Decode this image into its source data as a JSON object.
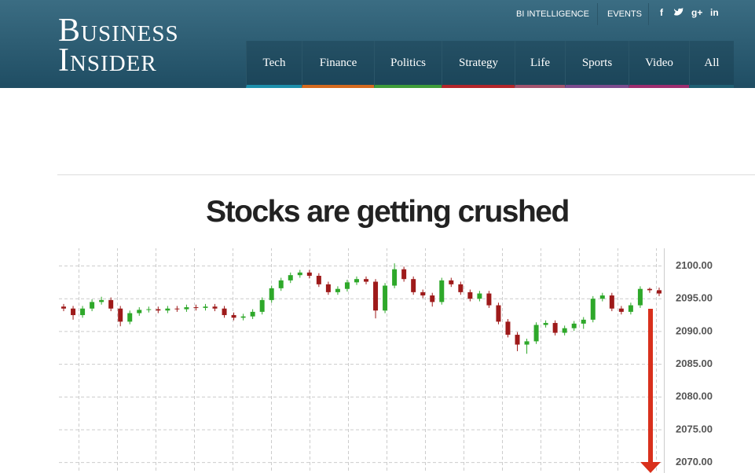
{
  "header": {
    "logo": [
      "Business",
      "Insider"
    ],
    "top_links": [
      "BI INTELLIGENCE",
      "EVENTS"
    ],
    "social": [
      "f",
      "g+",
      "in"
    ],
    "nav": [
      {
        "label": "Tech",
        "color": "#1d8fab"
      },
      {
        "label": "Finance",
        "color": "#d46a1e"
      },
      {
        "label": "Politics",
        "color": "#3f9c3a"
      },
      {
        "label": "Strategy",
        "color": "#b3262a"
      },
      {
        "label": "Life",
        "color": "#a3546e"
      },
      {
        "label": "Sports",
        "color": "#7d4c8e"
      },
      {
        "label": "Video",
        "color": "#9e2e70"
      },
      {
        "label": "All",
        "color": "#1f5f73"
      }
    ]
  },
  "chart_data": {
    "type": "candlestick",
    "title": "Stocks are getting crushed",
    "open": [
      2093.8,
      2093.5,
      2092.5,
      2093.5,
      2094.5,
      2094.8,
      2093.5,
      2091.5,
      2092.8,
      2093.3,
      2093.4,
      2093.2,
      2093.5,
      2093.4,
      2093.7,
      2093.6,
      2093.8,
      2093.5,
      2092.5,
      2092.1,
      2092.3,
      2093.0,
      2094.8,
      2096.6,
      2097.8,
      2098.6,
      2099.0,
      2098.5,
      2097.2,
      2096.0,
      2096.5,
      2097.5,
      2098.0,
      2097.6,
      2093.2,
      2097.0,
      2099.5,
      2098.0,
      2096.0,
      2095.5,
      2094.5,
      2097.8,
      2097.2,
      2096.0,
      2095.0,
      2095.8,
      2094.0,
      2091.5,
      2089.5,
      2088.0,
      2088.5,
      2091.0,
      2091.3,
      2089.8,
      2090.5,
      2091.2,
      2091.8,
      2095.0,
      2095.5,
      2093.5,
      2093.0,
      2094.0,
      2096.5,
      2096.3
    ],
    "high": [
      2094.2,
      2093.9,
      2093.9,
      2094.9,
      2095.3,
      2095.2,
      2093.9,
      2093.2,
      2093.7,
      2093.8,
      2093.8,
      2093.9,
      2093.9,
      2094.1,
      2094.1,
      2094.2,
      2094.2,
      2093.9,
      2092.9,
      2092.7,
      2093.4,
      2095.2,
      2097.0,
      2098.2,
      2099.0,
      2099.4,
      2099.4,
      2098.9,
      2097.6,
      2096.9,
      2097.9,
      2098.4,
      2098.4,
      2098.0,
      2097.4,
      2100.4,
      2099.9,
      2098.4,
      2096.4,
      2095.9,
      2098.2,
      2098.2,
      2097.6,
      2096.4,
      2096.2,
      2096.2,
      2094.4,
      2091.9,
      2089.9,
      2088.9,
      2091.4,
      2091.7,
      2091.7,
      2090.9,
      2091.6,
      2092.2,
      2095.4,
      2095.9,
      2095.9,
      2093.9,
      2094.4,
      2096.9,
      2096.7,
      2096.7
    ],
    "low": [
      2093.1,
      2091.8,
      2092.1,
      2093.1,
      2094.1,
      2093.1,
      2090.8,
      2091.1,
      2092.4,
      2092.9,
      2092.8,
      2092.8,
      2093.0,
      2093.0,
      2093.2,
      2093.2,
      2093.1,
      2092.1,
      2091.7,
      2091.7,
      2091.9,
      2092.6,
      2094.4,
      2096.2,
      2097.4,
      2098.2,
      2098.1,
      2096.8,
      2095.6,
      2095.6,
      2096.1,
      2097.1,
      2097.2,
      2092.0,
      2092.8,
      2096.6,
      2097.6,
      2095.6,
      2095.1,
      2093.8,
      2094.1,
      2096.8,
      2095.6,
      2094.6,
      2094.6,
      2093.6,
      2091.1,
      2089.1,
      2087.0,
      2086.6,
      2088.1,
      2090.6,
      2089.4,
      2089.4,
      2090.1,
      2090.4,
      2091.4,
      2094.6,
      2093.1,
      2092.6,
      2092.6,
      2093.6,
      2095.9,
      2095.4
    ],
    "close": [
      2093.5,
      2092.5,
      2093.5,
      2094.5,
      2094.8,
      2093.5,
      2091.5,
      2092.8,
      2093.3,
      2093.4,
      2093.2,
      2093.5,
      2093.4,
      2093.7,
      2093.6,
      2093.8,
      2093.5,
      2092.5,
      2092.1,
      2092.3,
      2093.0,
      2094.8,
      2096.6,
      2097.8,
      2098.6,
      2099.0,
      2098.5,
      2097.2,
      2096.0,
      2096.5,
      2097.5,
      2098.0,
      2097.6,
      2093.2,
      2097.0,
      2099.5,
      2098.0,
      2096.0,
      2095.5,
      2094.5,
      2097.8,
      2097.2,
      2096.0,
      2095.0,
      2095.8,
      2094.0,
      2091.5,
      2089.5,
      2088.0,
      2088.5,
      2091.0,
      2091.3,
      2089.8,
      2090.5,
      2091.2,
      2091.8,
      2095.0,
      2095.5,
      2093.5,
      2093.0,
      2094.0,
      2096.5,
      2096.3,
      2095.8
    ],
    "up_color": "#2ea82a",
    "down_color": "#9e1a1a",
    "ylim": [
      2068.4,
      2102.7
    ],
    "yticks": [
      {
        "value": 2070,
        "label": "2070.00"
      },
      {
        "value": 2075,
        "label": "2075.00"
      },
      {
        "value": 2080,
        "label": "2080.00"
      },
      {
        "value": 2085,
        "label": "2085.00"
      },
      {
        "value": 2090,
        "label": "2090.00"
      },
      {
        "value": 2095,
        "label": "2095.00"
      },
      {
        "value": 2100,
        "label": "2100.00"
      }
    ],
    "grid": true
  }
}
